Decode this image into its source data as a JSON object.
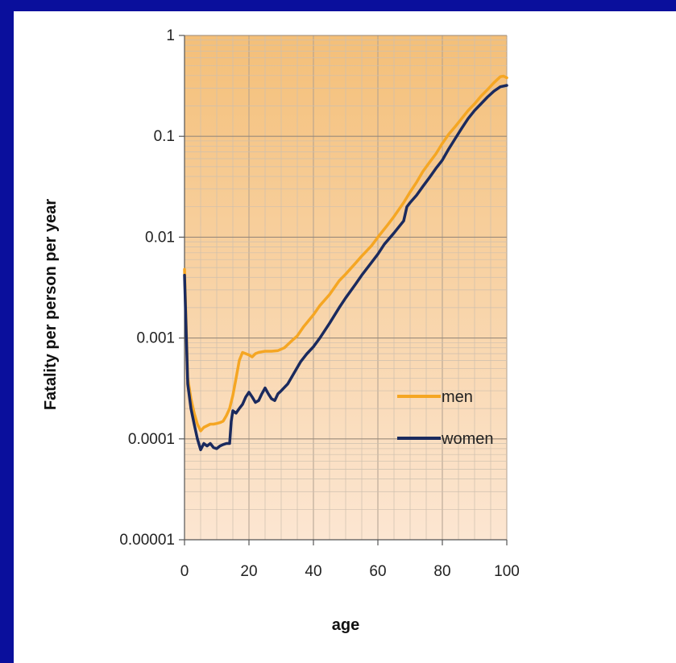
{
  "slide": {
    "title": "",
    "colors": {
      "background": "#0a0f9c",
      "title": "#ffff00",
      "panel": "#ffffff"
    }
  },
  "chart_data": {
    "type": "line",
    "title": "",
    "xlabel": "age",
    "ylabel": "Fatality per person per year",
    "xlim": [
      0,
      100
    ],
    "ylim": [
      1e-05,
      1
    ],
    "yscale": "log",
    "xticks": [
      0,
      20,
      40,
      60,
      80,
      100
    ],
    "yticks": [
      1e-05,
      0.0001,
      0.001,
      0.01,
      0.1,
      1
    ],
    "xtick_labels": [
      "0",
      "20",
      "40",
      "60",
      "80",
      "100"
    ],
    "ytick_labels": [
      "0.00001",
      "0.0001",
      "0.001",
      "0.01",
      "0.1",
      "1"
    ],
    "grid": true,
    "background": "orange gradient",
    "legend": {
      "position": "center-right"
    },
    "series": [
      {
        "name": "men",
        "color": "#f5a623",
        "points": [
          [
            0,
            0.0048
          ],
          [
            1,
            0.0004
          ],
          [
            2,
            0.00025
          ],
          [
            3,
            0.00018
          ],
          [
            4,
            0.00014
          ],
          [
            5,
            0.00012
          ],
          [
            6,
            0.00013
          ],
          [
            7,
            0.000135
          ],
          [
            8,
            0.00014
          ],
          [
            9,
            0.00014
          ],
          [
            10,
            0.000142
          ],
          [
            11,
            0.000145
          ],
          [
            12,
            0.00015
          ],
          [
            13,
            0.00017
          ],
          [
            14,
            0.0002
          ],
          [
            15,
            0.00027
          ],
          [
            16,
            0.0004
          ],
          [
            17,
            0.0006
          ],
          [
            18,
            0.00072
          ],
          [
            19,
            0.0007
          ],
          [
            20,
            0.00068
          ],
          [
            21,
            0.00065
          ],
          [
            22,
            0.0007
          ],
          [
            23,
            0.00072
          ],
          [
            24,
            0.00073
          ],
          [
            25,
            0.00074
          ],
          [
            27,
            0.00074
          ],
          [
            29,
            0.00075
          ],
          [
            31,
            0.0008
          ],
          [
            33,
            0.00092
          ],
          [
            35,
            0.00105
          ],
          [
            37,
            0.0013
          ],
          [
            40,
            0.0017
          ],
          [
            42,
            0.0021
          ],
          [
            45,
            0.0027
          ],
          [
            48,
            0.0037
          ],
          [
            50,
            0.0043
          ],
          [
            53,
            0.0055
          ],
          [
            55,
            0.0065
          ],
          [
            58,
            0.0082
          ],
          [
            60,
            0.01
          ],
          [
            63,
            0.0132
          ],
          [
            65,
            0.016
          ],
          [
            68,
            0.022
          ],
          [
            70,
            0.028
          ],
          [
            72,
            0.035
          ],
          [
            74,
            0.045
          ],
          [
            76,
            0.055
          ],
          [
            78,
            0.067
          ],
          [
            80,
            0.085
          ],
          [
            82,
            0.105
          ],
          [
            84,
            0.125
          ],
          [
            86,
            0.15
          ],
          [
            88,
            0.18
          ],
          [
            90,
            0.21
          ],
          [
            92,
            0.25
          ],
          [
            94,
            0.29
          ],
          [
            96,
            0.34
          ],
          [
            98,
            0.39
          ],
          [
            99,
            0.395
          ],
          [
            100,
            0.38
          ]
        ]
      },
      {
        "name": "women",
        "color": "#1a2a5e",
        "points": [
          [
            0,
            0.0042
          ],
          [
            1,
            0.00035
          ],
          [
            2,
            0.0002
          ],
          [
            3,
            0.00014
          ],
          [
            4,
            0.0001
          ],
          [
            5,
            7.8e-05
          ],
          [
            6,
            9e-05
          ],
          [
            7,
            8.5e-05
          ],
          [
            8,
            9e-05
          ],
          [
            9,
            8.2e-05
          ],
          [
            10,
            8e-05
          ],
          [
            11,
            8.5e-05
          ],
          [
            12,
            8.8e-05
          ],
          [
            13,
            9e-05
          ],
          [
            14,
            9e-05
          ],
          [
            14.5,
            0.00015
          ],
          [
            15,
            0.00019
          ],
          [
            16,
            0.00018
          ],
          [
            17,
            0.0002
          ],
          [
            18,
            0.00022
          ],
          [
            19,
            0.00026
          ],
          [
            20,
            0.00029
          ],
          [
            21,
            0.00026
          ],
          [
            22,
            0.00023
          ],
          [
            23,
            0.00024
          ],
          [
            24,
            0.00028
          ],
          [
            25,
            0.00032
          ],
          [
            26,
            0.00028
          ],
          [
            27,
            0.00025
          ],
          [
            28,
            0.00024
          ],
          [
            29,
            0.00028
          ],
          [
            30,
            0.0003
          ],
          [
            32,
            0.00035
          ],
          [
            34,
            0.00045
          ],
          [
            36,
            0.00058
          ],
          [
            38,
            0.0007
          ],
          [
            40,
            0.00082
          ],
          [
            42,
            0.001
          ],
          [
            45,
            0.0014
          ],
          [
            48,
            0.002
          ],
          [
            50,
            0.0025
          ],
          [
            53,
            0.0034
          ],
          [
            55,
            0.0042
          ],
          [
            58,
            0.0056
          ],
          [
            60,
            0.0068
          ],
          [
            62,
            0.0085
          ],
          [
            65,
            0.011
          ],
          [
            68,
            0.0145
          ],
          [
            69,
            0.02
          ],
          [
            70,
            0.022
          ],
          [
            72,
            0.026
          ],
          [
            74,
            0.032
          ],
          [
            76,
            0.039
          ],
          [
            78,
            0.048
          ],
          [
            80,
            0.058
          ],
          [
            82,
            0.075
          ],
          [
            84,
            0.095
          ],
          [
            86,
            0.12
          ],
          [
            88,
            0.15
          ],
          [
            90,
            0.18
          ],
          [
            92,
            0.21
          ],
          [
            94,
            0.245
          ],
          [
            96,
            0.28
          ],
          [
            98,
            0.31
          ],
          [
            100,
            0.32
          ]
        ]
      }
    ]
  }
}
